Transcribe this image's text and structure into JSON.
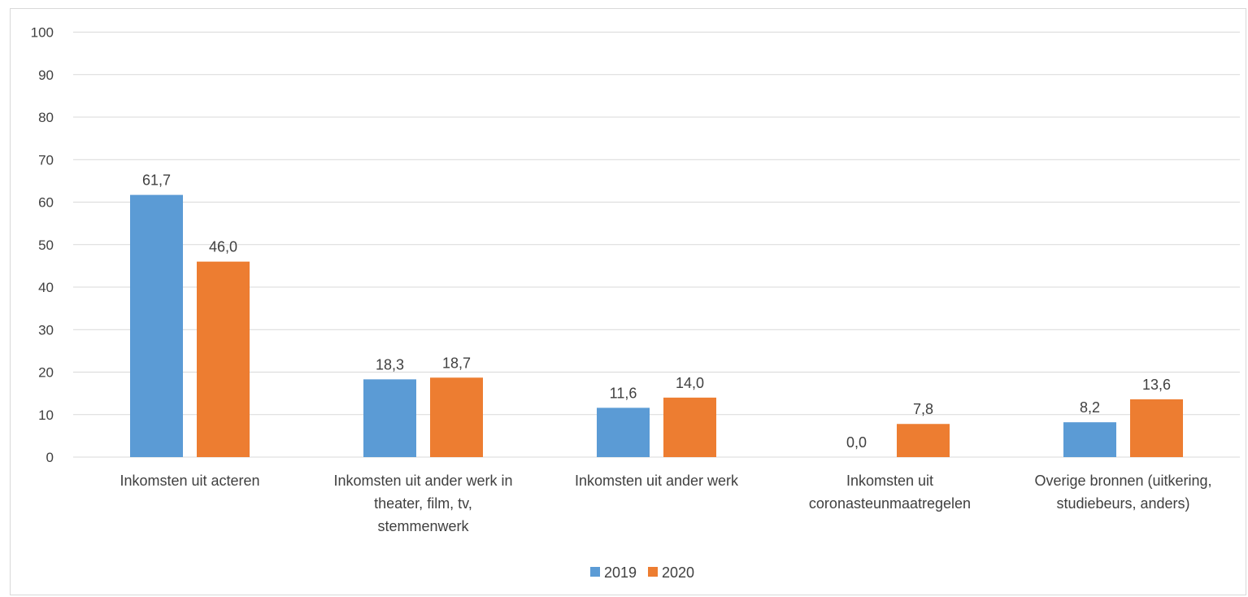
{
  "chart_data": {
    "type": "bar",
    "title": "",
    "xlabel": "",
    "ylabel": "",
    "ylim": [
      0,
      100
    ],
    "yticks": [
      0,
      10,
      20,
      30,
      40,
      50,
      60,
      70,
      80,
      90,
      100
    ],
    "grid": true,
    "legend_position": "bottom",
    "categories": [
      [
        "Inkomsten uit acteren"
      ],
      [
        "Inkomsten uit ander werk in",
        "theater, film, tv,",
        "stemmenwerk"
      ],
      [
        "Inkomsten uit ander werk"
      ],
      [
        "Inkomsten uit",
        "coronasteunmaatregelen"
      ],
      [
        "Overige bronnen (uitkering,",
        "studiebeurs, anders)"
      ]
    ],
    "series": [
      {
        "name": "2019",
        "color": "#5b9bd5",
        "values": [
          61.7,
          18.3,
          11.6,
          0.0,
          8.2
        ],
        "labels": [
          "61,7",
          "18,3",
          "11,6",
          "0,0",
          "8,2"
        ]
      },
      {
        "name": "2020",
        "color": "#ed7d31",
        "values": [
          46.0,
          18.7,
          14.0,
          7.8,
          13.6
        ],
        "labels": [
          "46,0",
          "18,7",
          "14,0",
          "7,8",
          "13,6"
        ]
      }
    ]
  }
}
